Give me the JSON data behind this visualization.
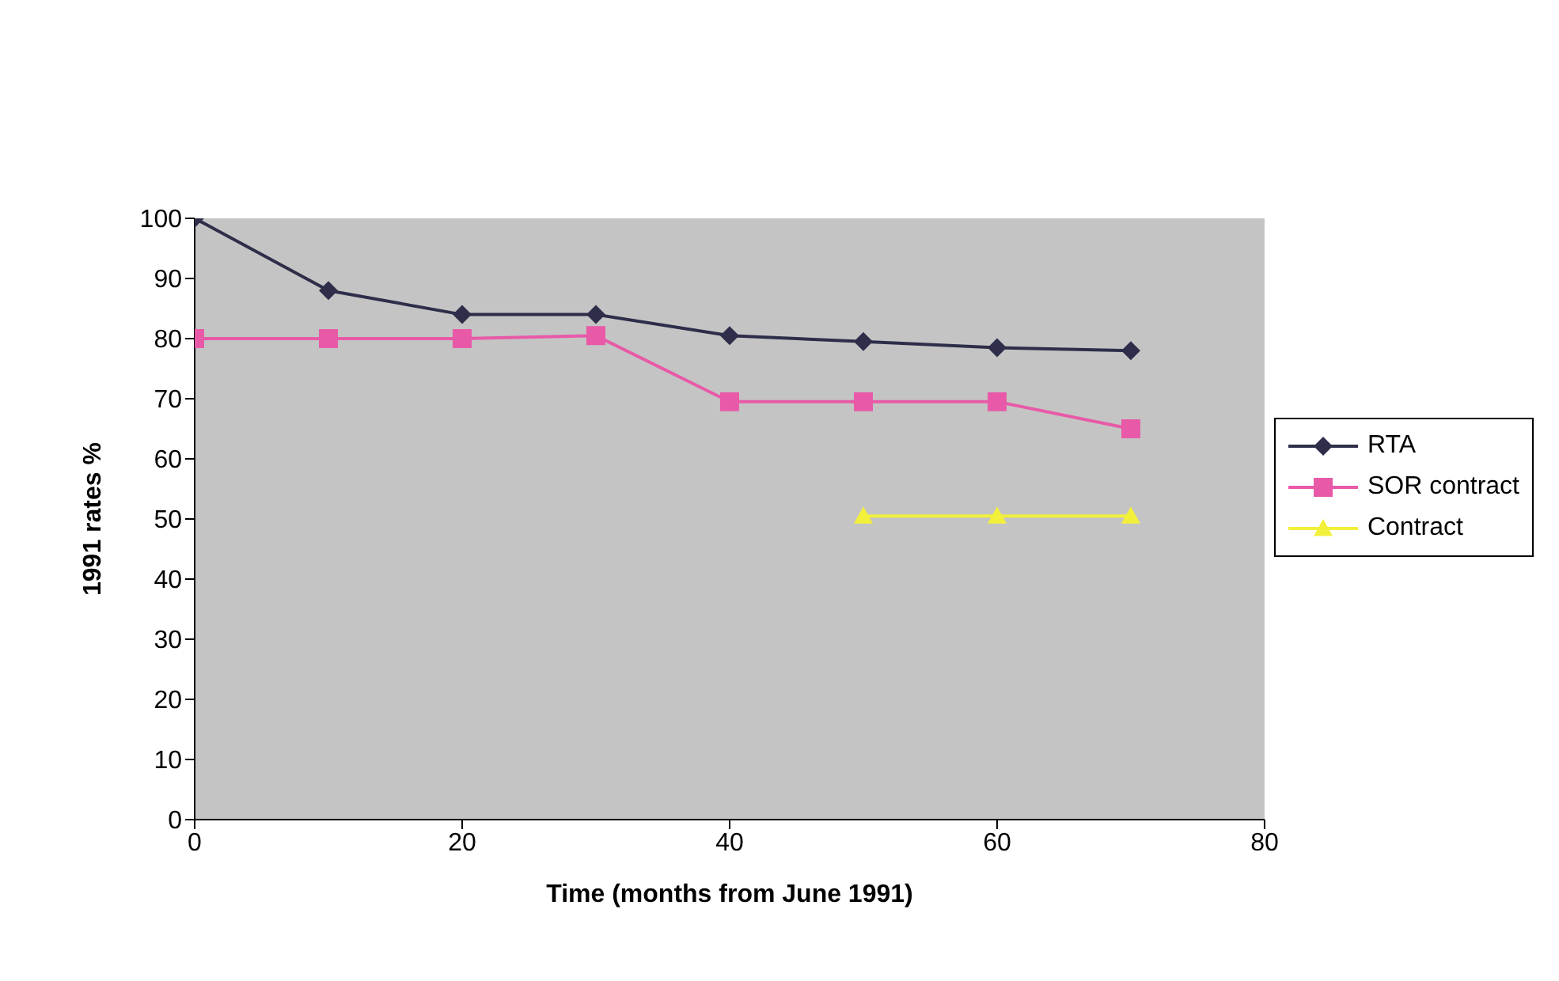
{
  "chart_data": {
    "type": "line",
    "xlabel": "Time (months from June 1991)",
    "ylabel": "1991 rates %",
    "xlim": [
      0,
      80
    ],
    "xticks": [
      0,
      20,
      40,
      60,
      80
    ],
    "ylim": [
      0,
      100
    ],
    "yticks": [
      0,
      10,
      20,
      30,
      40,
      50,
      60,
      70,
      80,
      90,
      100
    ],
    "grid": false,
    "legend": "right",
    "series": [
      {
        "name": "RTA",
        "color": "#2e2e4a",
        "marker": "diamond",
        "x": [
          0,
          10,
          20,
          30,
          40,
          50,
          60,
          70
        ],
        "values": [
          100,
          88,
          84,
          84,
          80.5,
          79.5,
          78.5,
          78
        ]
      },
      {
        "name": "SOR contract",
        "color": "#e85aa8",
        "marker": "square",
        "x": [
          0,
          10,
          20,
          30,
          40,
          50,
          60,
          70
        ],
        "values": [
          80,
          80,
          80,
          80.5,
          69.5,
          69.5,
          69.5,
          65
        ]
      },
      {
        "name": "Contract",
        "color": "#f2f03a",
        "marker": "triangle",
        "x": [
          50,
          60,
          70
        ],
        "values": [
          50.5,
          50.5,
          50.5
        ]
      }
    ]
  }
}
